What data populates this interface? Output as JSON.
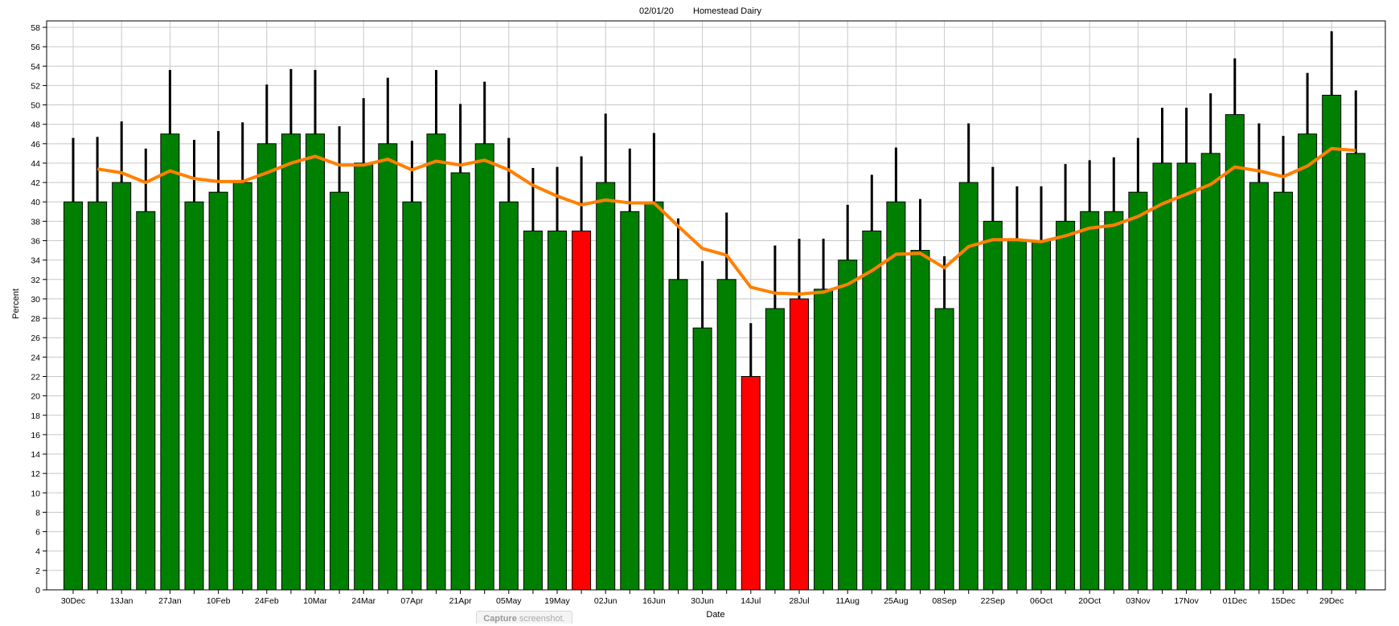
{
  "header": {
    "date": "02/01/20",
    "farm": "Homestead Dairy"
  },
  "capture_tab": {
    "bold": "Capture",
    "rest": "screenshot."
  },
  "colors": {
    "bar": "#008000",
    "bar_flag": "#ff0000",
    "errorbar": "#000000",
    "trend": "#ff8000",
    "grid": "#c8c8c8"
  },
  "chart_data": {
    "type": "bar",
    "xlabel": "Date",
    "ylabel": "Percent",
    "ylim": [
      0,
      58
    ],
    "ytick_step": 2,
    "grid": true,
    "legend": "none",
    "tick_labels": [
      "30Dec",
      "13Jan",
      "27Jan",
      "10Feb",
      "24Feb",
      "10Mar",
      "24Mar",
      "07Apr",
      "21Apr",
      "05May",
      "19May",
      "02Jun",
      "16Jun",
      "30Jun",
      "14Jul",
      "28Jul",
      "11Aug",
      "25Aug",
      "08Sep",
      "22Sep",
      "06Oct",
      "20Oct",
      "03Nov",
      "17Nov",
      "01Dec",
      "15Dec",
      "29Dec"
    ],
    "values": [
      40,
      40,
      42,
      39,
      47,
      40,
      41,
      42,
      46,
      47,
      47,
      41,
      44,
      46,
      40,
      47,
      43,
      46,
      40,
      37,
      37,
      37,
      42,
      39,
      40,
      32,
      27,
      32,
      22,
      29,
      30,
      31,
      34,
      37,
      40,
      35,
      29,
      42,
      38,
      36,
      36,
      38,
      39,
      39,
      41,
      44,
      44,
      45,
      49,
      42,
      41,
      47,
      51,
      45
    ],
    "flagged": [
      0,
      0,
      0,
      0,
      0,
      0,
      0,
      0,
      0,
      0,
      0,
      0,
      0,
      0,
      0,
      0,
      0,
      0,
      0,
      0,
      0,
      1,
      0,
      0,
      0,
      0,
      0,
      0,
      1,
      0,
      1,
      0,
      0,
      0,
      0,
      0,
      0,
      0,
      0,
      0,
      0,
      0,
      0,
      0,
      0,
      0,
      0,
      0,
      0,
      0,
      0,
      0,
      0,
      0
    ],
    "error_high": [
      46.6,
      46.7,
      48.3,
      45.5,
      53.6,
      46.4,
      47.3,
      48.2,
      52.1,
      53.7,
      53.6,
      47.8,
      50.7,
      52.8,
      46.3,
      53.6,
      50.1,
      52.4,
      46.6,
      43.5,
      43.6,
      44.7,
      49.1,
      45.5,
      47.1,
      38.3,
      33.9,
      38.9,
      27.5,
      35.5,
      36.2,
      36.2,
      39.7,
      42.8,
      45.6,
      40.3,
      34.4,
      48.1,
      43.6,
      41.6,
      41.6,
      43.9,
      44.3,
      44.6,
      46.6,
      49.7,
      49.7,
      51.2,
      54.8,
      48.1,
      46.8,
      53.3,
      57.6,
      51.5
    ],
    "trend": [
      null,
      43.4,
      43.0,
      42.0,
      43.2,
      42.4,
      42.1,
      42.1,
      43.0,
      44.0,
      44.7,
      43.8,
      43.8,
      44.4,
      43.3,
      44.2,
      43.8,
      44.3,
      43.3,
      41.7,
      40.6,
      39.7,
      40.2,
      39.9,
      39.9,
      37.5,
      35.2,
      34.5,
      31.2,
      30.6,
      30.5,
      30.7,
      31.5,
      32.9,
      34.6,
      34.7,
      33.2,
      35.4,
      36.1,
      36.1,
      35.9,
      36.5,
      37.3,
      37.6,
      38.5,
      39.8,
      40.8,
      41.8,
      43.6,
      43.2,
      42.6,
      43.7,
      45.5,
      45.3
    ]
  }
}
